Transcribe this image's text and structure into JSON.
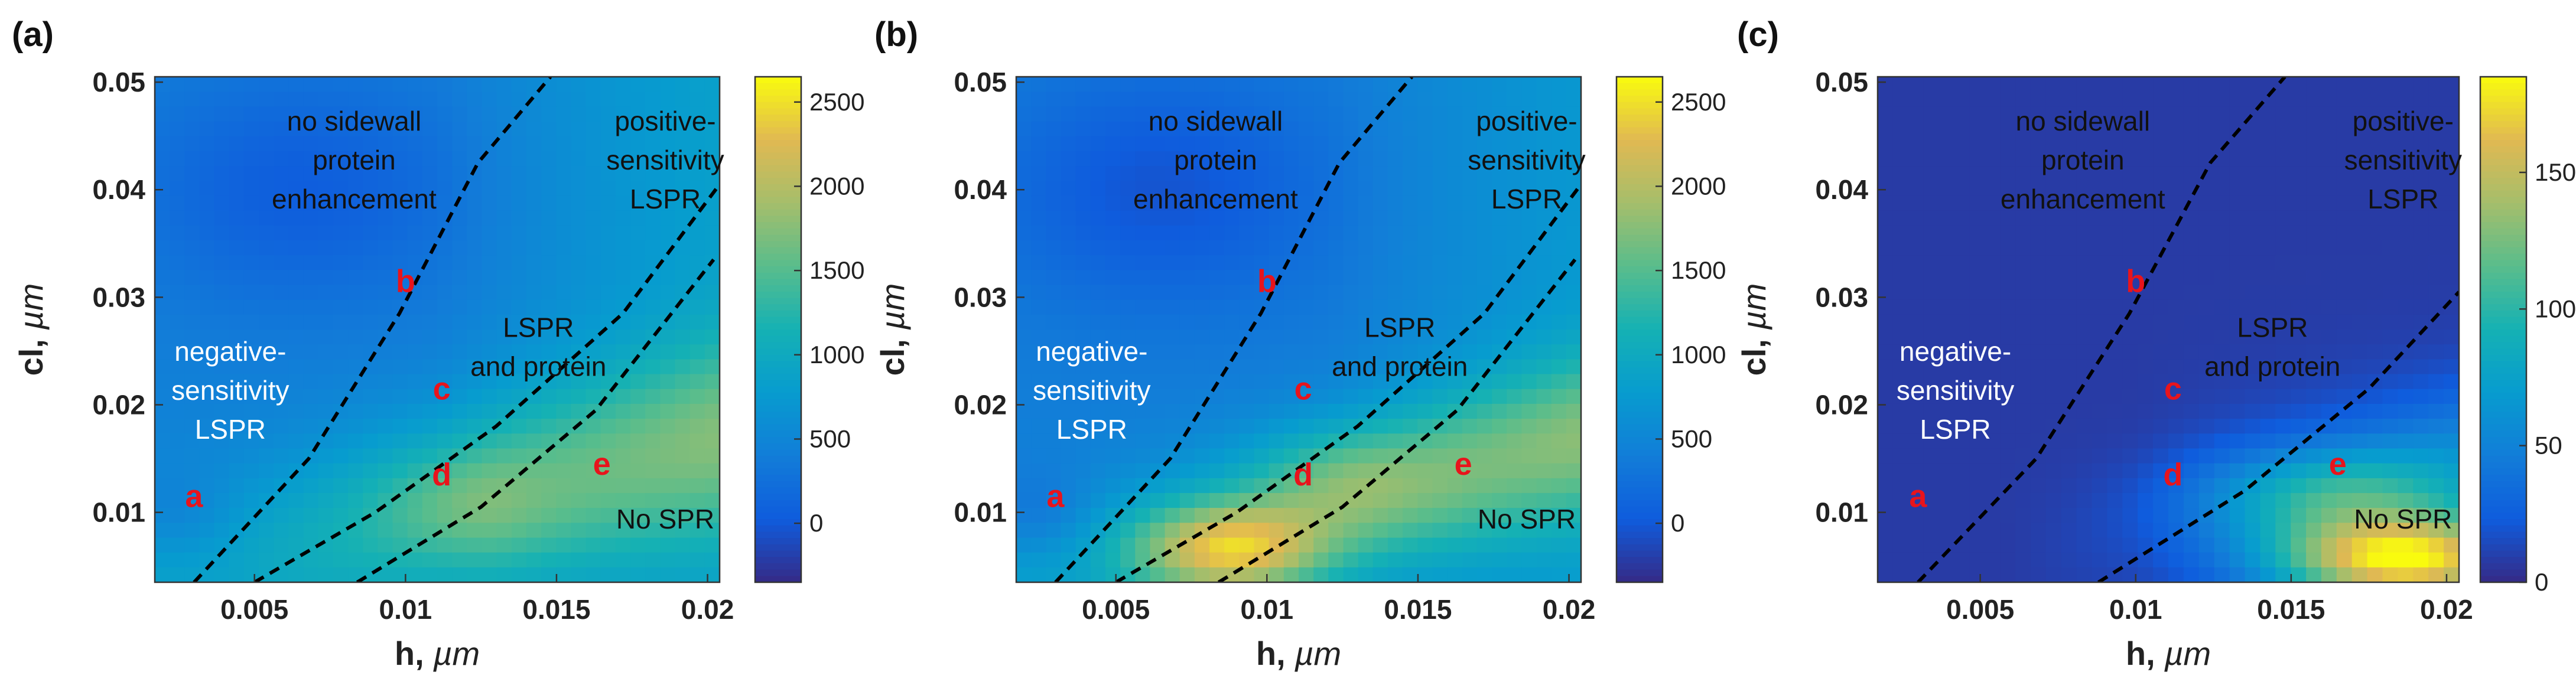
{
  "figure": {
    "x_axis_label_main": "h, ",
    "x_axis_label_unit": "µm",
    "y_axis_label_main": "cl, ",
    "y_axis_label_unit": "µm"
  },
  "chart_data": [
    {
      "type": "heatmap",
      "panel_label": "(a)",
      "xlabel": "h, µm",
      "ylabel": "cl, µm",
      "xlim": [
        0.0017,
        0.0204
      ],
      "ylim": [
        0.0035,
        0.0505
      ],
      "x_ticks": [
        "0.005",
        "0.01",
        "0.015",
        "0.02"
      ],
      "y_ticks": [
        "0.01",
        "0.02",
        "0.03",
        "0.04",
        "0.05"
      ],
      "colorbar": {
        "min": -350,
        "max": 2650,
        "ticks": [
          "0",
          "500",
          "1000",
          "1500",
          "2000",
          "2500"
        ]
      },
      "peak": {
        "h": 0.0115,
        "cl": 0.011,
        "value": 1800
      },
      "regions": [
        {
          "lines": [
            "no sidewall",
            "protein",
            "enhancement"
          ],
          "color": "dark"
        },
        {
          "lines": [
            "positive-",
            "sensitivity",
            "LSPR"
          ],
          "color": "dark"
        },
        {
          "lines": [
            "negative-",
            "sensitivity",
            "LSPR"
          ],
          "color": "white"
        },
        {
          "lines": [
            "LSPR",
            "and protein"
          ],
          "color": "dark"
        },
        {
          "lines": [
            "No SPR"
          ],
          "color": "dark"
        }
      ],
      "points": [
        {
          "label": "a",
          "h": 0.003,
          "cl": 0.0105
        },
        {
          "label": "b",
          "h": 0.01,
          "cl": 0.0305
        },
        {
          "label": "c",
          "h": 0.0112,
          "cl": 0.0205
        },
        {
          "label": "d",
          "h": 0.0112,
          "cl": 0.0125
        },
        {
          "label": "e",
          "h": 0.0165,
          "cl": 0.0135
        }
      ],
      "boundaries": [
        [
          [
            0.003,
            0.0035
          ],
          [
            0.0068,
            0.015
          ],
          [
            0.0098,
            0.0285
          ],
          [
            0.0124,
            0.0425
          ],
          [
            0.0148,
            0.0505
          ]
        ],
        [
          [
            0.005,
            0.0035
          ],
          [
            0.009,
            0.01
          ],
          [
            0.013,
            0.018
          ],
          [
            0.0172,
            0.0285
          ],
          [
            0.0204,
            0.0405
          ]
        ],
        [
          [
            0.0084,
            0.0035
          ],
          [
            0.0125,
            0.0105
          ],
          [
            0.0163,
            0.0195
          ],
          [
            0.0202,
            0.0335
          ]
        ]
      ]
    },
    {
      "type": "heatmap",
      "panel_label": "(b)",
      "xlabel": "h, µm",
      "ylabel": "cl, µm",
      "xlim": [
        0.0017,
        0.0204
      ],
      "ylim": [
        0.0035,
        0.0505
      ],
      "x_ticks": [
        "0.005",
        "0.01",
        "0.015",
        "0.02"
      ],
      "y_ticks": [
        "0.01",
        "0.02",
        "0.03",
        "0.04",
        "0.05"
      ],
      "colorbar": {
        "min": -350,
        "max": 2650,
        "ticks": [
          "0",
          "500",
          "1000",
          "1500",
          "2000",
          "2500"
        ]
      },
      "peak": {
        "h": 0.0085,
        "cl": 0.006,
        "value": 2600
      },
      "regions": [
        {
          "lines": [
            "no sidewall",
            "protein",
            "enhancement"
          ],
          "color": "dark"
        },
        {
          "lines": [
            "positive-",
            "sensitivity",
            "LSPR"
          ],
          "color": "dark"
        },
        {
          "lines": [
            "negative-",
            "sensitivity",
            "LSPR"
          ],
          "color": "white"
        },
        {
          "lines": [
            "LSPR",
            "and protein"
          ],
          "color": "dark"
        },
        {
          "lines": [
            "No SPR"
          ],
          "color": "dark"
        }
      ],
      "points": [
        {
          "label": "a",
          "h": 0.003,
          "cl": 0.0105
        },
        {
          "label": "b",
          "h": 0.01,
          "cl": 0.0305
        },
        {
          "label": "c",
          "h": 0.0112,
          "cl": 0.0205
        },
        {
          "label": "d",
          "h": 0.0112,
          "cl": 0.0125
        },
        {
          "label": "e",
          "h": 0.0165,
          "cl": 0.0135
        }
      ],
      "boundaries": [
        [
          [
            0.003,
            0.0035
          ],
          [
            0.0068,
            0.015
          ],
          [
            0.0098,
            0.0285
          ],
          [
            0.0124,
            0.0425
          ],
          [
            0.0148,
            0.0505
          ]
        ],
        [
          [
            0.005,
            0.0035
          ],
          [
            0.009,
            0.01
          ],
          [
            0.013,
            0.018
          ],
          [
            0.0172,
            0.0285
          ],
          [
            0.0204,
            0.0405
          ]
        ],
        [
          [
            0.0084,
            0.0035
          ],
          [
            0.0125,
            0.0105
          ],
          [
            0.0163,
            0.0195
          ],
          [
            0.0202,
            0.0335
          ]
        ]
      ]
    },
    {
      "type": "heatmap",
      "panel_label": "(c)",
      "xlabel": "h, µm",
      "ylabel": "cl, µm",
      "xlim": [
        0.0017,
        0.0204
      ],
      "ylim": [
        0.0035,
        0.0505
      ],
      "x_ticks": [
        "0.005",
        "0.01",
        "0.015",
        "0.02"
      ],
      "y_ticks": [
        "0.01",
        "0.02",
        "0.03",
        "0.04",
        "0.05"
      ],
      "colorbar": {
        "min": 0,
        "max": 185,
        "ticks": [
          "0",
          "50",
          "100",
          "150"
        ]
      },
      "peak": {
        "h": 0.0185,
        "cl": 0.006,
        "value": 180
      },
      "regions": [
        {
          "lines": [
            "no sidewall",
            "protein",
            "enhancement"
          ],
          "color": "dark"
        },
        {
          "lines": [
            "positive-",
            "sensitivity",
            "LSPR"
          ],
          "color": "dark"
        },
        {
          "lines": [
            "negative-",
            "sensitivity",
            "LSPR"
          ],
          "color": "white"
        },
        {
          "lines": [
            "LSPR",
            "and protein"
          ],
          "color": "dark"
        },
        {
          "lines": [
            "No SPR"
          ],
          "color": "dark"
        }
      ],
      "points": [
        {
          "label": "a",
          "h": 0.003,
          "cl": 0.0105
        },
        {
          "label": "b",
          "h": 0.01,
          "cl": 0.0305
        },
        {
          "label": "c",
          "h": 0.0112,
          "cl": 0.0205
        },
        {
          "label": "d",
          "h": 0.0112,
          "cl": 0.0125
        },
        {
          "label": "e",
          "h": 0.0165,
          "cl": 0.0135
        }
      ],
      "boundaries": [
        [
          [
            0.003,
            0.0035
          ],
          [
            0.0068,
            0.015
          ],
          [
            0.0098,
            0.0285
          ],
          [
            0.0124,
            0.0425
          ],
          [
            0.0148,
            0.0505
          ]
        ],
        [
          [
            0.0088,
            0.0035
          ],
          [
            0.0135,
            0.012
          ],
          [
            0.0175,
            0.0215
          ],
          [
            0.0204,
            0.0305
          ]
        ]
      ]
    }
  ]
}
